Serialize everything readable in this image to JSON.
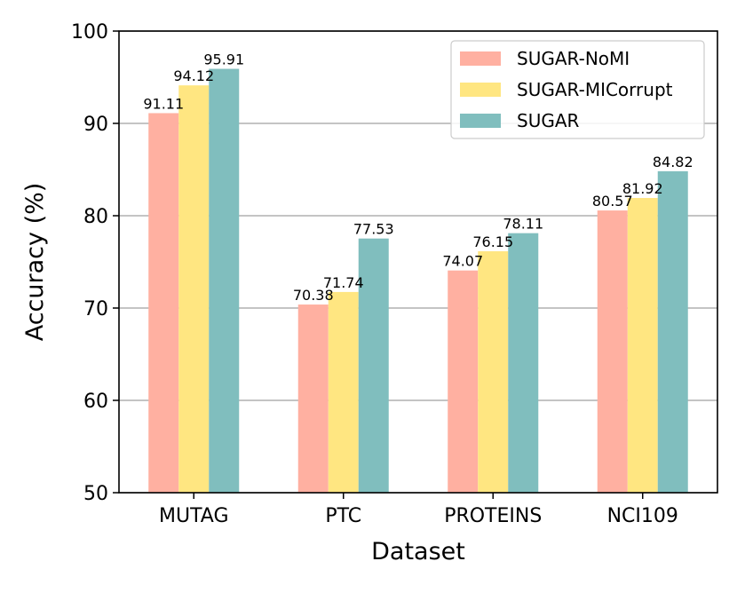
{
  "chart_data": {
    "type": "bar",
    "title": "",
    "xlabel": "Dataset",
    "ylabel": "Accuracy (%)",
    "ylim": [
      50,
      100
    ],
    "yticks": [
      50,
      60,
      70,
      80,
      90,
      100
    ],
    "grid": "horizontal",
    "legend_position": "top-right",
    "categories": [
      "MUTAG",
      "PTC",
      "PROTEINS",
      "NCI109"
    ],
    "series": [
      {
        "name": "SUGAR-NoMI",
        "color": "#FFB0A1",
        "values": [
          91.11,
          70.38,
          74.07,
          80.57
        ]
      },
      {
        "name": "SUGAR-MICorrupt",
        "color": "#FFE681",
        "values": [
          94.12,
          71.74,
          76.15,
          81.92
        ]
      },
      {
        "name": "SUGAR",
        "color": "#80BEBE",
        "values": [
          95.91,
          77.53,
          78.11,
          84.82
        ]
      }
    ]
  }
}
